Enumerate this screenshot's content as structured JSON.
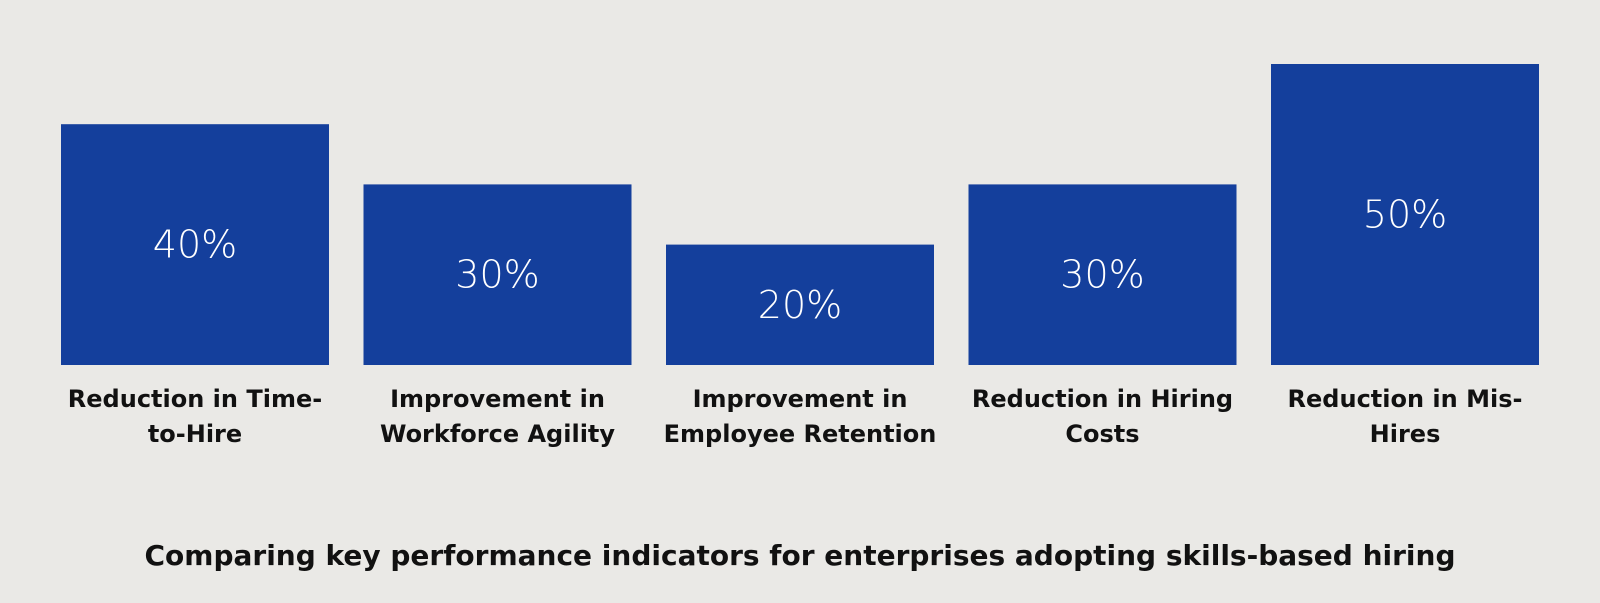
{
  "chart_data": {
    "type": "bar",
    "categories": [
      [
        "Reduction in Time-",
        "to-Hire"
      ],
      [
        "Improvement in",
        "Workforce Agility"
      ],
      [
        "Improvement in",
        "Employee Retention"
      ],
      [
        "Reduction in Hiring",
        "Costs"
      ],
      [
        "Reduction in Mis-",
        "Hires"
      ]
    ],
    "values": [
      40,
      30,
      20,
      30,
      50
    ],
    "value_labels": [
      "40%",
      "30%",
      "20%",
      "30%",
      "50%"
    ],
    "unit": "%",
    "ylim": [
      0,
      50
    ],
    "grid": false,
    "legend": "none",
    "bar_color": "#143F9C",
    "value_text_color": "#FFFFFF",
    "caption": "Comparing key performance indicators for enterprises adopting skills-based hiring"
  },
  "colors": {
    "background": "#EAE9E6",
    "bar": "#143F9C",
    "text": "#111111"
  }
}
